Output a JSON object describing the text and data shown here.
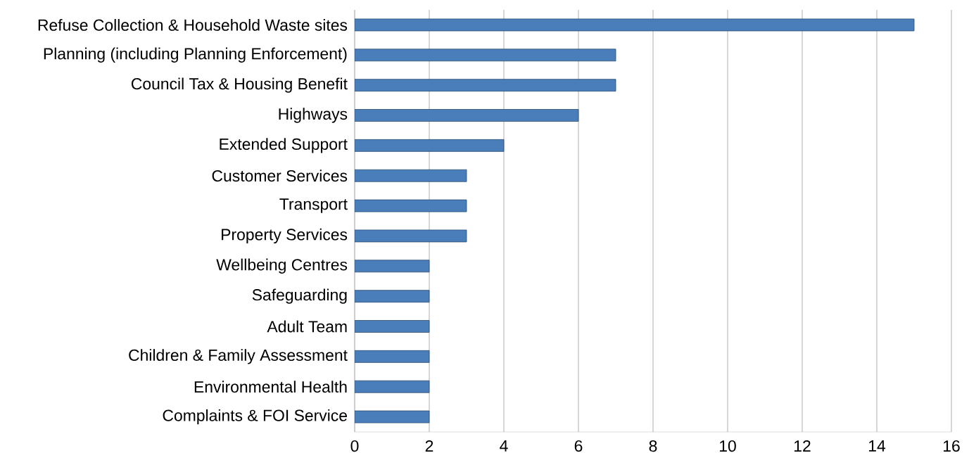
{
  "chart_data": {
    "type": "bar",
    "orientation": "horizontal",
    "categories": [
      "Refuse Collection & Household Waste sites",
      "Planning (including Planning Enforcement)",
      "Council Tax & Housing Benefit",
      "Highways",
      "Extended Support",
      "Customer Services",
      "Transport",
      "Property Services",
      "Wellbeing Centres",
      "Safeguarding",
      "Adult Team",
      "Children & Family Assessment",
      "Environmental Health",
      "Complaints & FOI Service"
    ],
    "values": [
      15,
      7,
      7,
      6,
      4,
      3,
      3,
      3,
      2,
      2,
      2,
      2,
      2,
      2
    ],
    "color": "#4a7ebb",
    "xlim": [
      0,
      16
    ],
    "xticks": [
      0,
      2,
      4,
      6,
      8,
      10,
      12,
      14,
      16
    ],
    "grid": "x"
  }
}
